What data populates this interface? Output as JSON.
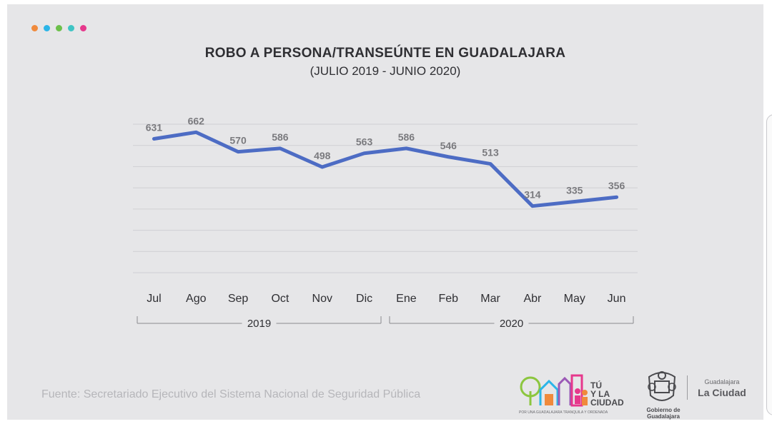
{
  "colors": {
    "dots": [
      "#f08a3c",
      "#2bb5e8",
      "#6cc04a",
      "#3fc4c4",
      "#e6388c"
    ],
    "line": "#4d6cc4",
    "grid": "#cfcfd3",
    "text": "#2f2f33",
    "value_label": "#7a7a7e"
  },
  "chart_data": {
    "type": "line",
    "title": "ROBO A PERSONA/TRANSEÚNTE EN GUADALAJARA",
    "subtitle": "(JULIO 2019 - JUNIO 2020)",
    "categories": [
      "Jul",
      "Ago",
      "Sep",
      "Oct",
      "Nov",
      "Dic",
      "Ene",
      "Feb",
      "Mar",
      "Abr",
      "May",
      "Jun"
    ],
    "values": [
      631,
      662,
      570,
      586,
      498,
      563,
      586,
      546,
      513,
      314,
      335,
      356
    ],
    "data_labels": [
      "631",
      "662",
      "570",
      "586",
      "498",
      "563",
      "586",
      "546",
      "513",
      "314",
      "335",
      "356"
    ],
    "year_groups": [
      {
        "label": "2019",
        "first_index": 0,
        "last_index": 5
      },
      {
        "label": "2020",
        "first_index": 6,
        "last_index": 11
      }
    ],
    "ylim": [
      0,
      700
    ],
    "y_tick_step": 100,
    "grid": true,
    "legend": "none"
  },
  "footer": {
    "source": "Fuente: Secretariado Ejecutivo del Sistema Nacional de Seguridad Pública",
    "logo_tu_text": "TÚ Y LA CIUDAD",
    "logo_tu_tagline": "POR UNA GUADALAJARA TRANQUILA Y ORDENADA",
    "seal_text": "Gobierno de Guadalajara",
    "city_small": "Guadalajara",
    "city_big": "La Ciudad"
  }
}
